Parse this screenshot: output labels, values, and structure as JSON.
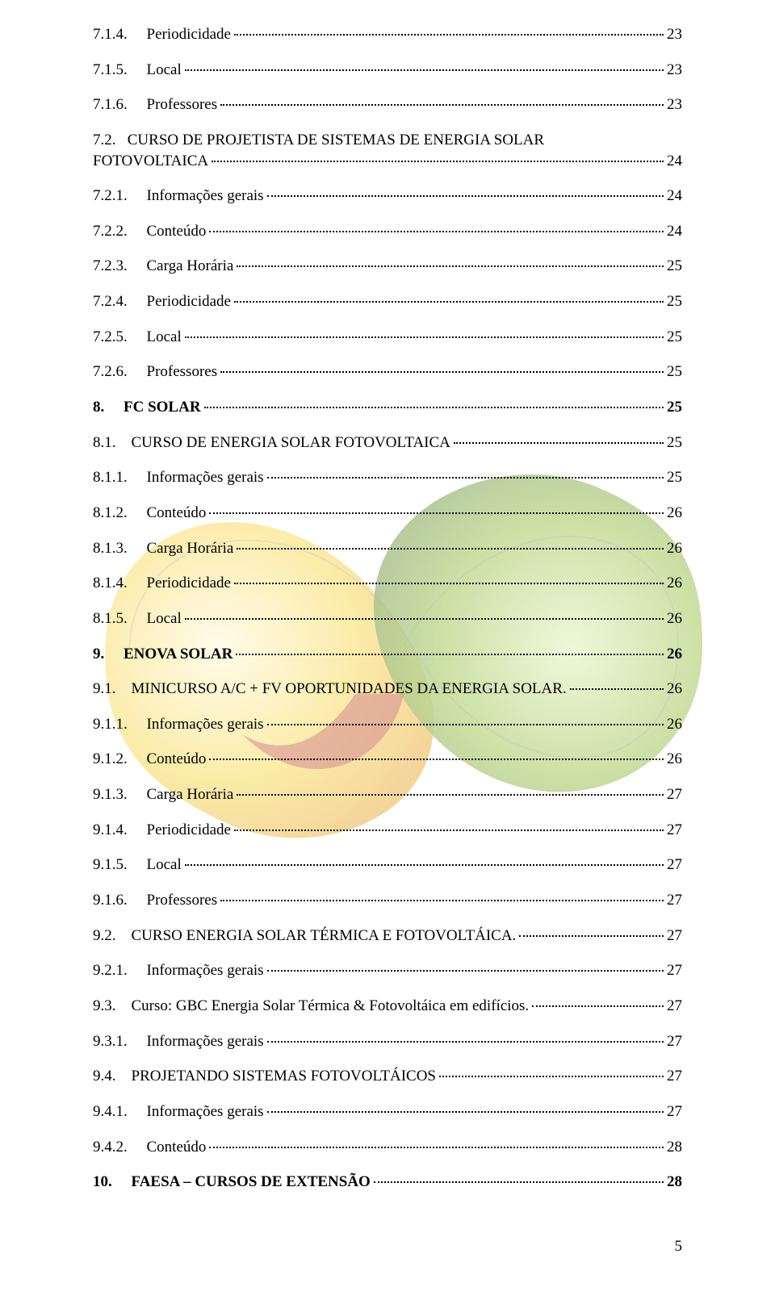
{
  "page_number": "5",
  "watermark": {
    "colors": {
      "yellow": "#f6d444",
      "green_light": "#8fbb3b",
      "green_dark": "#4e7a2e",
      "red": "#b43b3e",
      "outline": "#808080"
    }
  },
  "toc": [
    {
      "num": "7.1.4.",
      "label": "Periodicidade",
      "page": "23",
      "bold": false
    },
    {
      "num": "7.1.5.",
      "label": "Local",
      "page": "23",
      "bold": false
    },
    {
      "num": "7.1.6.",
      "label": "Professores",
      "page": "23",
      "bold": false
    },
    {
      "num": "7.2.",
      "label": "CURSO DE PROJETISTA DE SISTEMAS DE ENERGIA SOLAR FOTOVOLTAICA",
      "page": "24",
      "bold": false,
      "wrap": true
    },
    {
      "num": "7.2.1.",
      "label": "Informações gerais",
      "page": "24",
      "bold": false
    },
    {
      "num": "7.2.2.",
      "label": "Conteúdo",
      "page": "24",
      "bold": false
    },
    {
      "num": "7.2.3.",
      "label": "Carga Horária",
      "page": "25",
      "bold": false
    },
    {
      "num": "7.2.4.",
      "label": "Periodicidade",
      "page": "25",
      "bold": false
    },
    {
      "num": "7.2.5.",
      "label": "Local",
      "page": "25",
      "bold": false
    },
    {
      "num": "7.2.6.",
      "label": "Professores",
      "page": "25",
      "bold": false
    },
    {
      "num": "8.",
      "label": "FC SOLAR",
      "page": "25",
      "bold": true
    },
    {
      "num": "8.1.",
      "label": "CURSO DE ENERGIA SOLAR FOTOVOLTAICA",
      "page": "25",
      "bold": false
    },
    {
      "num": "8.1.1.",
      "label": "Informações gerais",
      "page": "25",
      "bold": false
    },
    {
      "num": "8.1.2.",
      "label": "Conteúdo",
      "page": "26",
      "bold": false
    },
    {
      "num": "8.1.3.",
      "label": "Carga Horária",
      "page": "26",
      "bold": false
    },
    {
      "num": "8.1.4.",
      "label": "Periodicidade",
      "page": "26",
      "bold": false
    },
    {
      "num": "8.1.5.",
      "label": "Local",
      "page": "26",
      "bold": false
    },
    {
      "num": "9.",
      "label": "ENOVA SOLAR",
      "page": "26",
      "bold": true
    },
    {
      "num": "9.1.",
      "label": "MINICURSO A/C + FV OPORTUNIDADES DA ENERGIA SOLAR.",
      "page": "26",
      "bold": false
    },
    {
      "num": "9.1.1.",
      "label": "Informações gerais",
      "page": "26",
      "bold": false
    },
    {
      "num": "9.1.2.",
      "label": "Conteúdo",
      "page": "26",
      "bold": false
    },
    {
      "num": "9.1.3.",
      "label": "Carga Horária",
      "page": "27",
      "bold": false
    },
    {
      "num": "9.1.4.",
      "label": "Periodicidade",
      "page": "27",
      "bold": false
    },
    {
      "num": "9.1.5.",
      "label": "Local",
      "page": "27",
      "bold": false
    },
    {
      "num": "9.1.6.",
      "label": "Professores",
      "page": "27",
      "bold": false
    },
    {
      "num": "9.2.",
      "label": "CURSO ENERGIA SOLAR TÉRMICA E FOTOVOLTÁICA.",
      "page": "27",
      "bold": false
    },
    {
      "num": "9.2.1.",
      "label": "Informações gerais",
      "page": "27",
      "bold": false
    },
    {
      "num": "9.3.",
      "label": "Curso: GBC Energia Solar Térmica & Fotovoltáica em edifícios.",
      "page": "27",
      "bold": false
    },
    {
      "num": "9.3.1.",
      "label": "Informações gerais",
      "page": "27",
      "bold": false
    },
    {
      "num": "9.4.",
      "label": "PROJETANDO SISTEMAS FOTOVOLTÁICOS",
      "page": "27",
      "bold": false
    },
    {
      "num": "9.4.1.",
      "label": "Informações gerais",
      "page": "27",
      "bold": false
    },
    {
      "num": "9.4.2.",
      "label": "Conteúdo",
      "page": "28",
      "bold": false
    },
    {
      "num": "10.",
      "label": "FAESA – CURSOS DE EXTENSÃO",
      "page": "28",
      "bold": true
    }
  ]
}
